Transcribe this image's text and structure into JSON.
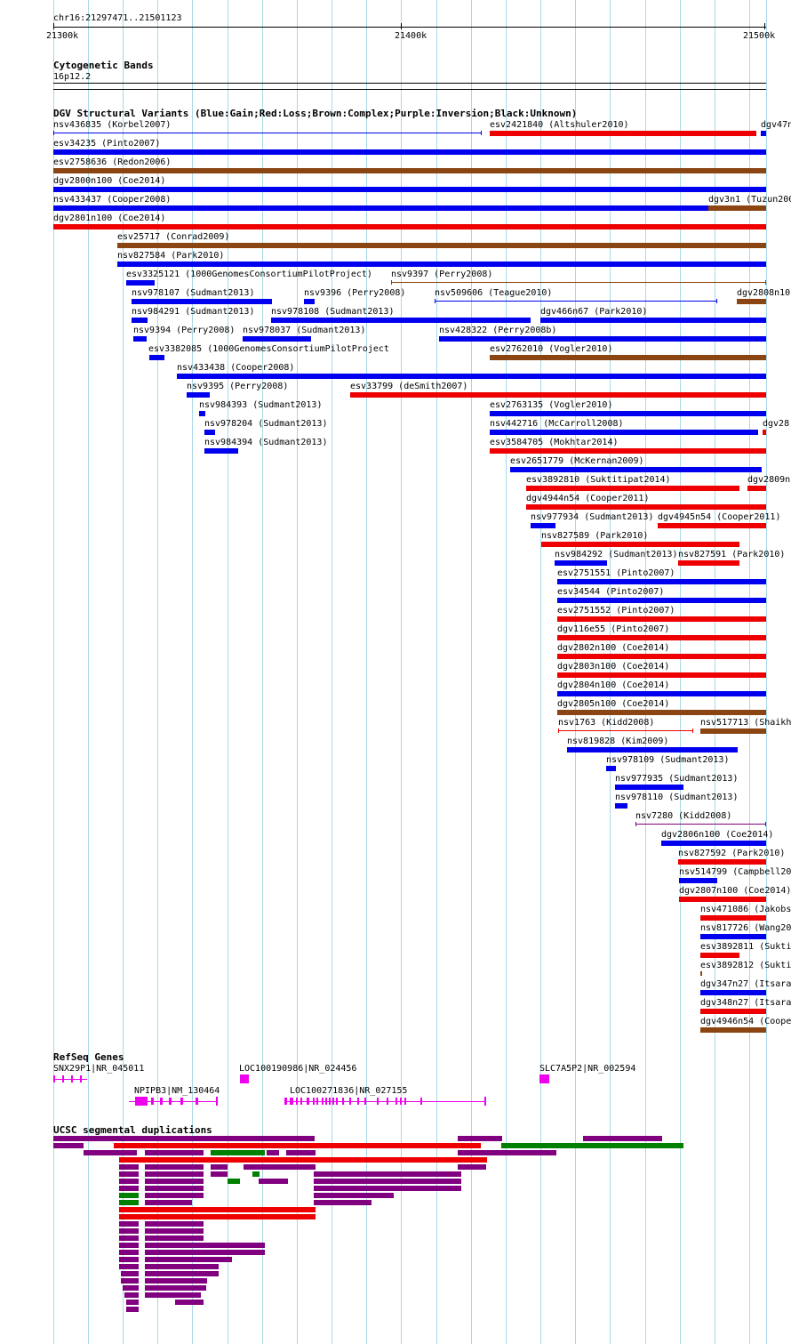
{
  "ruler": {
    "position": "chr16:21297471..21501123",
    "ticks": [
      "21300k",
      "21400k",
      "21500k"
    ]
  },
  "cytoband": {
    "title": "Cytogenetic Bands",
    "band": "16p12.2"
  },
  "dgv": {
    "title": "DGV Structural Variants (Blue:Gain;Red:Loss;Brown:Complex;Purple:Inversion;Black:Unknown)",
    "colors": {
      "gain": "#0000ee",
      "loss": "#ee0000",
      "complex": "#8b4513",
      "inversion": "#800080"
    },
    "rows": [
      [
        {
          "label": "nsv436835 (Korbel2007)",
          "type": "gain",
          "style": "thin"
        },
        {
          "label": "esv2421840 (Altshuler2010)",
          "type": "loss"
        },
        {
          "label": "dgv47n",
          "type": "gain"
        }
      ],
      [
        {
          "label": "esv34235 (Pinto2007)",
          "type": "gain"
        }
      ],
      [
        {
          "label": "esv2758636 (Redon2006)",
          "type": "complex"
        }
      ],
      [
        {
          "label": "dgv2800n100 (Coe2014)",
          "type": "gain"
        }
      ],
      [
        {
          "label": "nsv433437 (Cooper2008)",
          "type": "gain"
        },
        {
          "label": "dgv3n1 (Tuzun200",
          "type": "complex"
        }
      ],
      [
        {
          "label": "dgv2801n100 (Coe2014)",
          "type": "loss"
        }
      ],
      [
        {
          "label": "esv25717 (Conrad2009)",
          "type": "complex"
        }
      ],
      [
        {
          "label": "nsv827584 (Park2010)",
          "type": "gain"
        }
      ],
      [
        {
          "label": "esv3325121 (1000GenomesConsortiumPilotProject)",
          "type": "gain"
        },
        {
          "label": "nsv9397 (Perry2008)",
          "type": "complex",
          "style": "thin"
        }
      ],
      [
        {
          "label": "nsv978107 (Sudmant2013)",
          "type": "gain"
        },
        {
          "label": "nsv9396 (Perry2008)",
          "type": "gain"
        },
        {
          "label": "nsv509606 (Teague2010)",
          "type": "gain",
          "style": "thin"
        },
        {
          "label": "dgv2808n10",
          "type": "complex"
        }
      ],
      [
        {
          "label": "nsv984291 (Sudmant2013)",
          "type": "gain"
        },
        {
          "label": "nsv978108 (Sudmant2013)",
          "type": "gain"
        },
        {
          "label": "dgv466n67 (Park2010)",
          "type": "gain"
        }
      ],
      [
        {
          "label": "nsv9394 (Perry2008)",
          "type": "gain"
        },
        {
          "label": "nsv978037 (Sudmant2013)",
          "type": "gain"
        },
        {
          "label": "nsv428322 (Perry2008b)",
          "type": "gain"
        }
      ],
      [
        {
          "label": "esv3382085 (1000GenomesConsortiumPilotProject",
          "type": "gain"
        },
        {
          "label": "esv2762010 (Vogler2010)",
          "type": "complex"
        }
      ],
      [
        {
          "label": "nsv433438 (Cooper2008)",
          "type": "gain"
        }
      ],
      [
        {
          "label": "nsv9395 (Perry2008)",
          "type": "gain"
        },
        {
          "label": "esv33799 (deSmith2007)",
          "type": "loss"
        }
      ],
      [
        {
          "label": "nsv984393 (Sudmant2013)",
          "type": "gain"
        },
        {
          "label": "esv2763135 (Vogler2010)",
          "type": "gain"
        }
      ],
      [
        {
          "label": "nsv978204 (Sudmant2013)",
          "type": "gain"
        },
        {
          "label": "nsv442716 (McCarroll2008)",
          "type": "gain"
        },
        {
          "label": "dgv28",
          "type": "loss"
        }
      ],
      [
        {
          "label": "nsv984394 (Sudmant2013)",
          "type": "gain"
        },
        {
          "label": "esv3584705 (Mokhtar2014)",
          "type": "loss"
        }
      ],
      [
        {
          "label": "esv2651779 (McKernan2009)",
          "type": "gain"
        }
      ],
      [
        {
          "label": "esv3892810 (Suktitipat2014)",
          "type": "loss"
        },
        {
          "label": "dgv2809n",
          "type": "loss"
        }
      ],
      [
        {
          "label": "dgv4944n54 (Cooper2011)",
          "type": "loss"
        }
      ],
      [
        {
          "label": "nsv977934 (Sudmant2013)",
          "type": "gain"
        },
        {
          "label": "dgv4945n54 (Cooper2011)",
          "type": "loss"
        }
      ],
      [
        {
          "label": "nsv827589 (Park2010)",
          "type": "loss"
        }
      ],
      [
        {
          "label": "nsv984292 (Sudmant2013)",
          "type": "gain"
        },
        {
          "label": "nsv827591 (Park2010)",
          "type": "loss"
        }
      ],
      [
        {
          "label": "esv2751551 (Pinto2007)",
          "type": "gain"
        }
      ],
      [
        {
          "label": "esv34544 (Pinto2007)",
          "type": "gain"
        }
      ],
      [
        {
          "label": "esv2751552 (Pinto2007)",
          "type": "loss"
        }
      ],
      [
        {
          "label": "dgv116e55 (Pinto2007)",
          "type": "loss"
        }
      ],
      [
        {
          "label": "dgv2802n100 (Coe2014)",
          "type": "loss"
        }
      ],
      [
        {
          "label": "dgv2803n100 (Coe2014)",
          "type": "loss"
        }
      ],
      [
        {
          "label": "dgv2804n100 (Coe2014)",
          "type": "gain"
        }
      ],
      [
        {
          "label": "dgv2805n100 (Coe2014)",
          "type": "complex"
        }
      ],
      [
        {
          "label": "nsv1763 (Kidd2008)",
          "type": "loss",
          "style": "thin"
        },
        {
          "label": "nsv517713 (Shaikh",
          "type": "complex"
        }
      ],
      [
        {
          "label": "nsv819828 (Kim2009)",
          "type": "gain"
        }
      ],
      [
        {
          "label": "nsv978109 (Sudmant2013)",
          "type": "gain"
        }
      ],
      [
        {
          "label": "nsv977935 (Sudmant2013)",
          "type": "gain"
        }
      ],
      [
        {
          "label": "nsv978110 (Sudmant2013)",
          "type": "gain"
        }
      ],
      [
        {
          "label": "nsv7280 (Kidd2008)",
          "type": "inversion",
          "style": "thin"
        }
      ],
      [
        {
          "label": "dgv2806n100 (Coe2014)",
          "type": "gain"
        }
      ],
      [
        {
          "label": "nsv827592 (Park2010)",
          "type": "loss"
        }
      ],
      [
        {
          "label": "nsv514799 (Campbell20",
          "type": "gain"
        }
      ],
      [
        {
          "label": "dgv2807n100 (Coe2014)",
          "type": "loss"
        }
      ],
      [
        {
          "label": "nsv471086 (Jakobs",
          "type": "loss"
        }
      ],
      [
        {
          "label": "nsv817726 (Wang20",
          "type": "gain"
        }
      ],
      [
        {
          "label": "esv3892811 (Sukti",
          "type": "loss"
        }
      ],
      [
        {
          "label": "esv3892812 (Sukti",
          "type": "complex",
          "style": "thin"
        }
      ],
      [
        {
          "label": "dgv347n27 (Itsara",
          "type": "gain"
        }
      ],
      [
        {
          "label": "dgv348n27 (Itsara",
          "type": "loss"
        }
      ],
      [
        {
          "label": "dgv4946n54 (Coope",
          "type": "complex"
        }
      ]
    ]
  },
  "refseq": {
    "title": "RefSeq Genes",
    "gene_color": "#ee00ee",
    "genes": [
      {
        "label": "SNX29P1|NR_045011"
      },
      {
        "label": "LOC100190986|NR_024456"
      },
      {
        "label": "SLC7A5P2|NR_002594"
      },
      {
        "label": "NPIPB3|NM_130464"
      },
      {
        "label": "LOC100271836|NR_027155"
      }
    ]
  },
  "segdups": {
    "title": "UCSC segmental duplications",
    "colors": {
      "purple": "#800080",
      "red": "#ee0000",
      "green": "#008000"
    }
  }
}
